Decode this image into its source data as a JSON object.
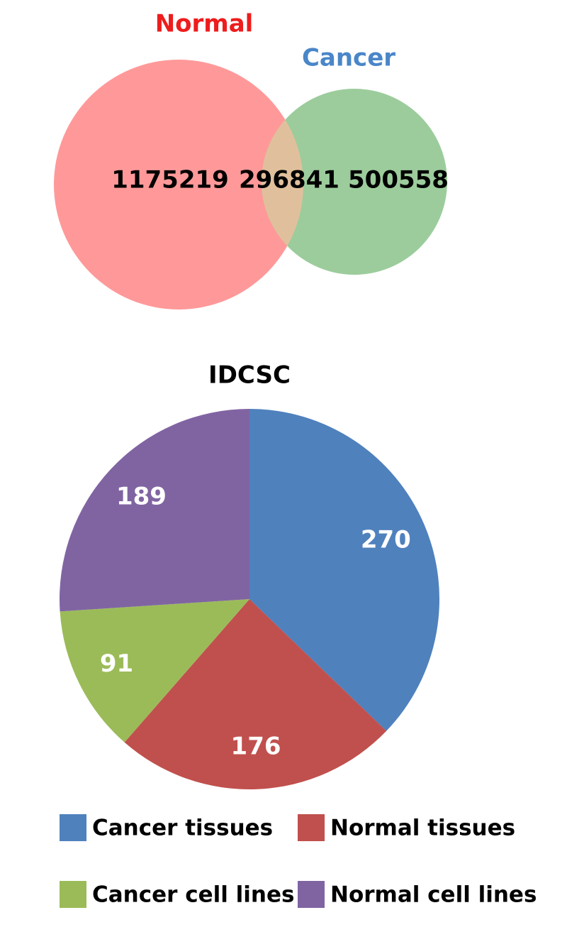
{
  "chart_data": [
    {
      "type": "venn",
      "sets": [
        {
          "name": "Normal",
          "color": "#ff9999",
          "label_color": "#ee1c1c"
        },
        {
          "name": "Cancer",
          "color": "#9ccc9c",
          "label_color": "#4a86c8"
        }
      ],
      "values": [
        1175219,
        296841,
        500558
      ],
      "overlap_color": "#e0c09c"
    },
    {
      "type": "pie",
      "title": "IDCSC",
      "categories": [
        "Cancer tissues",
        "Normal tissues",
        "Cancer cell lines",
        "Normal cell lines"
      ],
      "values": [
        270,
        176,
        91,
        189
      ],
      "colors": [
        "#4f81bd",
        "#c0504d",
        "#9bbb59",
        "#8064a2"
      ]
    }
  ]
}
